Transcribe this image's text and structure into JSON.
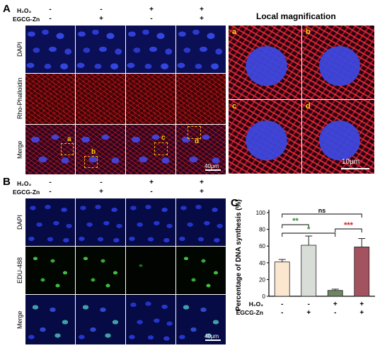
{
  "panel_a": {
    "label": "A",
    "conditions": [
      {
        "name": "H₂O₂",
        "signs": [
          "-",
          "-",
          "+",
          "+"
        ]
      },
      {
        "name": "EGCG-Zn",
        "signs": [
          "-",
          "+",
          "-",
          "+"
        ]
      }
    ],
    "rows": [
      "DAPI",
      "Rho-Phalloidin",
      "Merge"
    ],
    "box_labels": [
      "a",
      "b",
      "c",
      "d"
    ],
    "scale": "40μm",
    "magnification": {
      "title": "Local magnification",
      "labels": [
        "a",
        "b",
        "c",
        "d"
      ],
      "scale": "10μm"
    }
  },
  "panel_b": {
    "label": "B",
    "conditions": [
      {
        "name": "H₂O₂",
        "signs": [
          "-",
          "-",
          "+",
          "+"
        ]
      },
      {
        "name": "EGCG-Zn",
        "signs": [
          "-",
          "+",
          "-",
          "+"
        ]
      }
    ],
    "rows": [
      "DAPI",
      "EDU-488",
      "Merge"
    ],
    "scale": "40μm"
  },
  "panel_c": {
    "label": "C",
    "colors": {
      "bar1": "#fbe6cf",
      "bar2": "#d9ddd8",
      "bar3": "#6f8460",
      "bar4": "#a3525f",
      "sig_green": "#2d8a2d",
      "sig_red": "#d11a1a"
    },
    "chart_data": {
      "type": "bar",
      "ylabel": "Percentage of DNA synthesis (%)",
      "ylim": [
        0,
        100
      ],
      "yticks": [
        0,
        20,
        40,
        60,
        80,
        100
      ],
      "categories": [
        "1",
        "2",
        "3",
        "4"
      ],
      "values": [
        41,
        61,
        7,
        59
      ],
      "errors": [
        3,
        11,
        1.5,
        10
      ],
      "conditions": [
        {
          "name": "H₂O₂",
          "signs": [
            "-",
            "-",
            "+",
            "+"
          ]
        },
        {
          "name": "EGCG-Zn",
          "signs": [
            "-",
            "+",
            "-",
            "+"
          ]
        }
      ],
      "significance": [
        {
          "from": 0,
          "to": 3,
          "label": "ns",
          "color": "#000000"
        },
        {
          "from": 0,
          "to": 1,
          "label": "**",
          "color": "#2d8a2d"
        },
        {
          "from": 0,
          "to": 2,
          "label": "*",
          "color": "#2d8a2d"
        },
        {
          "from": 2,
          "to": 3,
          "label": "***",
          "color": "#d11a1a"
        }
      ]
    }
  }
}
